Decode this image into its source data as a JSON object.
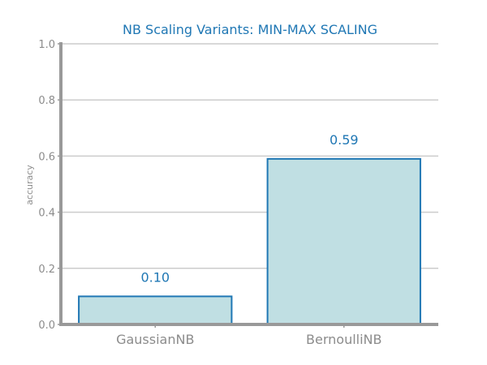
{
  "chart_data": {
    "type": "bar",
    "title": "NB Scaling Variants: MIN-MAX SCALING",
    "xlabel": "",
    "ylabel": "accuracy",
    "categories": [
      "GaussianNB",
      "BernoulliNB"
    ],
    "values": [
      0.1,
      0.59
    ],
    "data_labels": [
      "0.10",
      "0.59"
    ],
    "ylim": [
      0,
      1.0
    ],
    "yticks": [
      0.0,
      0.2,
      0.4,
      0.6,
      0.8,
      1.0
    ],
    "ytick_labels": [
      "0.0",
      "0.2",
      "0.4",
      "0.6",
      "0.8",
      "1.0"
    ],
    "grid": true,
    "legend": "none",
    "colors": {
      "bar_fill": "#c0dfe3",
      "bar_edge": "#1f77b4",
      "title": "#1f77b4",
      "data_label": "#1f77b4",
      "axis": "#999999",
      "grid": "#cccccc",
      "tick_text": "#8c8c8c"
    }
  }
}
